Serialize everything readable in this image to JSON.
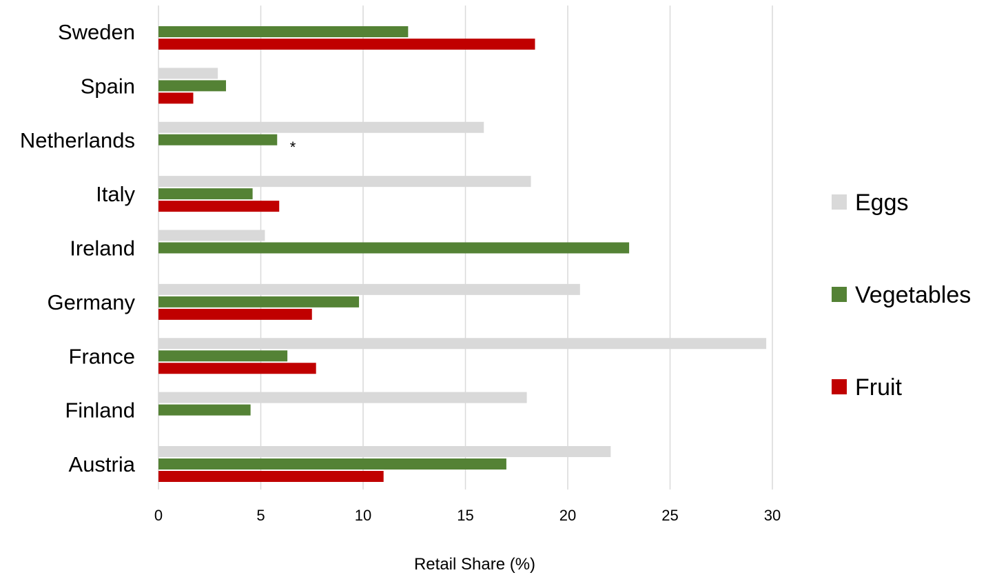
{
  "chart_data": {
    "type": "bar",
    "orientation": "horizontal",
    "categories": [
      "Sweden",
      "Spain",
      "Netherlands",
      "Italy",
      "Ireland",
      "Germany",
      "France",
      "Finland",
      "Austria"
    ],
    "series": [
      {
        "name": "Eggs",
        "color": "#d9d9d9",
        "values": [
          null,
          2.9,
          15.9,
          18.2,
          5.2,
          20.6,
          29.7,
          18.0,
          22.1
        ]
      },
      {
        "name": "Vegetables",
        "color": "#548235",
        "values": [
          12.2,
          3.3,
          5.8,
          4.6,
          23.0,
          9.8,
          6.3,
          4.5,
          17.0
        ]
      },
      {
        "name": "Fruit",
        "color": "#c00000",
        "values": [
          18.4,
          1.7,
          null,
          5.9,
          null,
          7.5,
          7.7,
          null,
          11.0
        ]
      }
    ],
    "xlabel": "Retail Share (%)",
    "ylabel": "",
    "xlim": [
      0,
      30
    ],
    "xticks": [
      "0",
      "5",
      "10",
      "15",
      "20",
      "25",
      "30"
    ],
    "grid": "vertical",
    "legend_position": "right",
    "annotations": [
      {
        "category": "Netherlands",
        "text": "*"
      }
    ]
  }
}
